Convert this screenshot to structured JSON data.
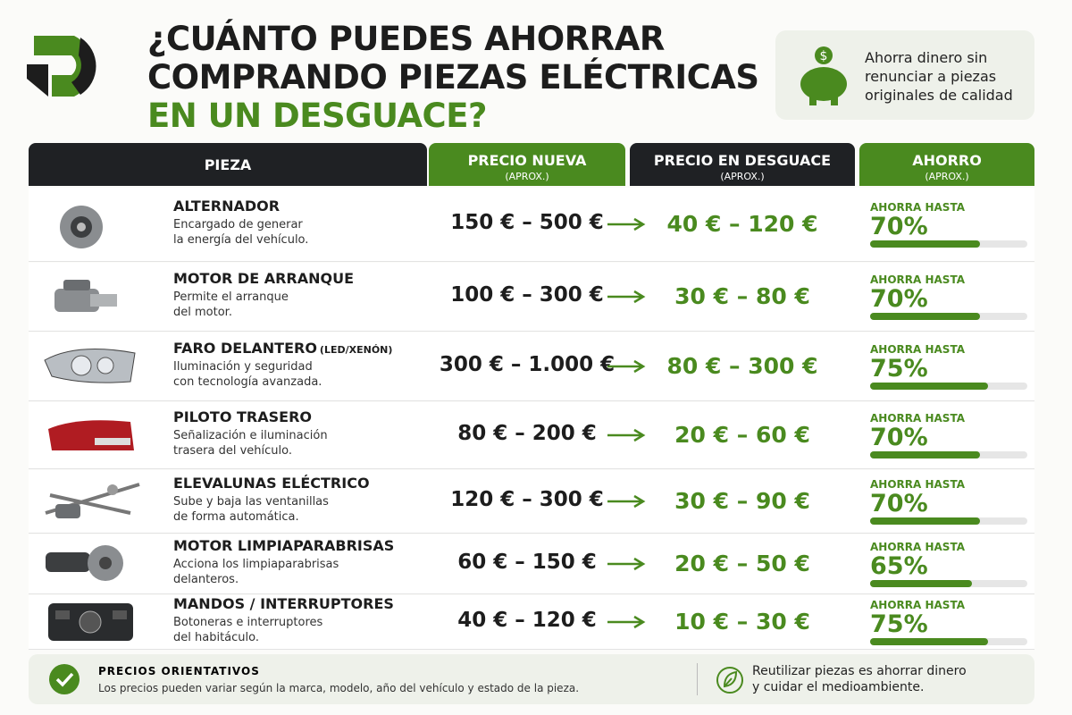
{
  "header": {
    "title_lines": [
      "¿CUÁNTO PUEDES AHORRAR",
      "COMPRANDO PIEZAS ELÉCTRICAS"
    ],
    "title_highlight": "EN UN DESGUACE?",
    "promo": "Ahorra dinero sin renunciar a piezas originales de calidad"
  },
  "table": {
    "columns": [
      {
        "title": "PIEZA"
      },
      {
        "title": "PRECIO NUEVA",
        "sub": "(APROX.)"
      },
      {
        "title": "PRECIO EN DESGUACE",
        "sub": "(APROX.)"
      },
      {
        "title": "AHORRO",
        "sub": "(APROX.)"
      }
    ],
    "saving_caption": "AHORRA HASTA",
    "rows": [
      {
        "name": "ALTERNADOR",
        "desc": [
          "Encargado de generar",
          "la energía del vehículo."
        ],
        "new_price": "150 € – 500 €",
        "used_price": "40 € – 120 €",
        "saving": {
          "value": 70,
          "label": "70%"
        }
      },
      {
        "name": "MOTOR DE ARRANQUE",
        "desc": [
          "Permite el arranque",
          "del motor."
        ],
        "new_price": "100 € – 300 €",
        "used_price": "30 € – 80 €",
        "saving": {
          "value": 70,
          "label": "70%"
        }
      },
      {
        "name": "FARO DELANTERO",
        "note": "(LED/XENÓN)",
        "desc": [
          "Iluminación y seguridad",
          "con tecnología avanzada."
        ],
        "new_price": "300 € – 1.000 €",
        "used_price": "80 € – 300 €",
        "saving": {
          "value": 75,
          "label": "75%"
        }
      },
      {
        "name": "PILOTO TRASERO",
        "desc": [
          "Señalización e iluminación",
          "trasera del vehículo."
        ],
        "new_price": "80 € – 200 €",
        "used_price": "20 € – 60 €",
        "saving": {
          "value": 70,
          "label": "70%"
        }
      },
      {
        "name": "ELEVALUNAS ELÉCTRICO",
        "desc": [
          "Sube y baja las ventanillas",
          "de forma automática."
        ],
        "new_price": "120 € – 300 €",
        "used_price": "30 € – 90 €",
        "saving": {
          "value": 70,
          "label": "70%"
        }
      },
      {
        "name": "MOTOR LIMPIAPARABRISAS",
        "desc": [
          "Acciona los limpiaparabrisas",
          "delanteros."
        ],
        "new_price": "60 € – 150 €",
        "used_price": "20 € – 50 €",
        "saving": {
          "value": 65,
          "label": "65%"
        }
      },
      {
        "name": "MANDOS / INTERRUPTORES",
        "desc": [
          "Botoneras e interruptores",
          "del habitáculo."
        ],
        "new_price": "40 € – 120 €",
        "used_price": "10 € – 30 €",
        "saving": {
          "value": 75,
          "label": "75%"
        }
      }
    ]
  },
  "footer": {
    "title": "PRECIOS ORIENTATIVOS",
    "note": "Los precios pueden variar según la marca, modelo, año del vehículo y estado de la pieza.",
    "eco": "Reutilizar piezas es ahorrar dinero y cuidar el medioambiente."
  }
}
